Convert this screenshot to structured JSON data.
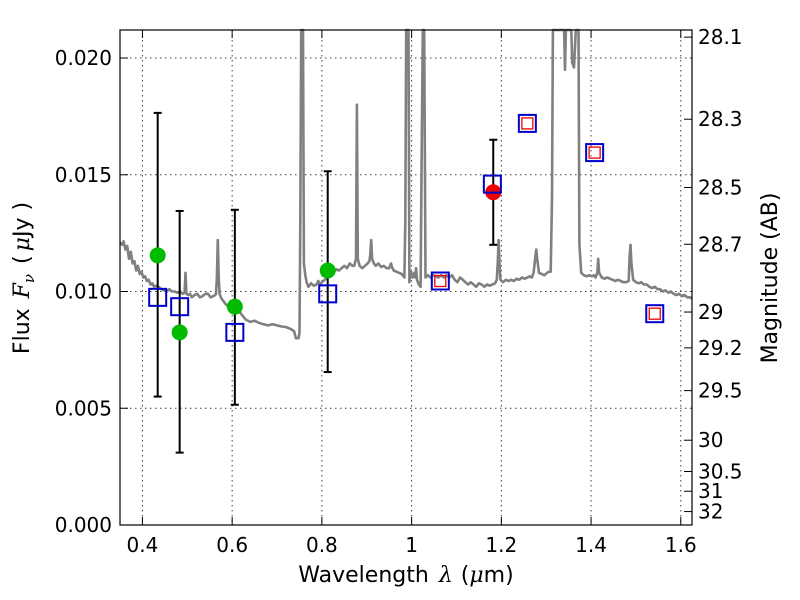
{
  "chart_data": {
    "type": "scatter",
    "title": "",
    "xlabel": {
      "prefix": "Wavelength",
      "symbol": "λ",
      "open": "(",
      "mu": "μ",
      "unit": "m)"
    },
    "ylabel": {
      "prefix": "Flux",
      "symbol": "F",
      "sub": "ν",
      "open": "(",
      "mu": "μ",
      "unit": "Jy )"
    },
    "y2label": "Magnitude (AB)",
    "xlim": [
      0.35,
      1.625
    ],
    "ylim": [
      0.0,
      0.0212
    ],
    "grid": true,
    "x_ticks": [
      0.4,
      0.6,
      0.8,
      1.0,
      1.2,
      1.4,
      1.6
    ],
    "x_tick_labels": [
      "0.4",
      "0.6",
      "0.8",
      "1",
      "1.2",
      "1.4",
      "1.6"
    ],
    "y_ticks": [
      0.0,
      0.005,
      0.01,
      0.015,
      0.02
    ],
    "y_tick_labels": [
      "0.000",
      "0.005",
      "0.010",
      "0.015",
      "0.020"
    ],
    "y2_ticks": [
      28.1,
      28.3,
      28.5,
      28.7,
      29,
      29.2,
      29.5,
      30,
      30.5,
      31,
      32
    ],
    "y2_tick_labels": [
      "28.1",
      "28.3",
      "28.5",
      "28.7",
      "29",
      "29.2",
      "29.5",
      "30",
      "30.5",
      "31",
      "32"
    ],
    "series": [
      {
        "name": "model spectrum",
        "kind": "line",
        "color": "#808080",
        "points": [
          [
            0.35,
            0.0121
          ],
          [
            0.355,
            0.012
          ],
          [
            0.358,
            0.01215
          ],
          [
            0.362,
            0.0118
          ],
          [
            0.366,
            0.01195
          ],
          [
            0.37,
            0.0114
          ],
          [
            0.374,
            0.0117
          ],
          [
            0.378,
            0.0112
          ],
          [
            0.382,
            0.0113
          ],
          [
            0.386,
            0.0109
          ],
          [
            0.39,
            0.0111
          ],
          [
            0.394,
            0.01075
          ],
          [
            0.398,
            0.01085
          ],
          [
            0.402,
            0.0106
          ],
          [
            0.406,
            0.01065
          ],
          [
            0.41,
            0.01045
          ],
          [
            0.414,
            0.0105
          ],
          [
            0.418,
            0.0103
          ],
          [
            0.422,
            0.01035
          ],
          [
            0.426,
            0.0102
          ],
          [
            0.43,
            0.01025
          ],
          [
            0.436,
            0.0102
          ],
          [
            0.442,
            0.0101
          ],
          [
            0.448,
            0.01005
          ],
          [
            0.454,
            0.01
          ],
          [
            0.46,
            0.0101
          ],
          [
            0.466,
            0.01
          ],
          [
            0.472,
            0.01
          ],
          [
            0.478,
            0.00995
          ],
          [
            0.484,
            0.01
          ],
          [
            0.49,
            0.0099
          ],
          [
            0.494,
            0.00995
          ],
          [
            0.496,
            0.0108
          ],
          [
            0.498,
            0.0099
          ],
          [
            0.502,
            0.00985
          ],
          [
            0.506,
            0.0099
          ],
          [
            0.51,
            0.00975
          ],
          [
            0.516,
            0.00985
          ],
          [
            0.522,
            0.0099
          ],
          [
            0.528,
            0.00975
          ],
          [
            0.534,
            0.0098
          ],
          [
            0.54,
            0.0099
          ],
          [
            0.546,
            0.0099
          ],
          [
            0.552,
            0.00975
          ],
          [
            0.558,
            0.0098
          ],
          [
            0.562,
            0.00985
          ],
          [
            0.564,
            0.0099
          ],
          [
            0.566,
            0.0106
          ],
          [
            0.568,
            0.0122
          ],
          [
            0.57,
            0.0106
          ],
          [
            0.572,
            0.0099
          ],
          [
            0.576,
            0.0097
          ],
          [
            0.58,
            0.0096
          ],
          [
            0.586,
            0.00945
          ],
          [
            0.592,
            0.00935
          ],
          [
            0.598,
            0.0093
          ],
          [
            0.604,
            0.0092
          ],
          [
            0.61,
            0.00915
          ],
          [
            0.616,
            0.00915
          ],
          [
            0.622,
            0.009
          ],
          [
            0.63,
            0.0088
          ],
          [
            0.64,
            0.0087
          ],
          [
            0.65,
            0.00875
          ],
          [
            0.66,
            0.00865
          ],
          [
            0.67,
            0.0086
          ],
          [
            0.68,
            0.00855
          ],
          [
            0.69,
            0.0086
          ],
          [
            0.7,
            0.00855
          ],
          [
            0.71,
            0.0085
          ],
          [
            0.72,
            0.00848
          ],
          [
            0.73,
            0.0084
          ],
          [
            0.738,
            0.0083
          ],
          [
            0.742,
            0.008
          ],
          [
            0.748,
            0.008
          ],
          [
            0.75,
            0.00825
          ],
          [
            0.752,
            0.013
          ],
          [
            0.754,
            0.0212
          ],
          [
            0.758,
            0.0212
          ],
          [
            0.76,
            0.0112
          ],
          [
            0.763,
            0.0107
          ],
          [
            0.766,
            0.0104
          ],
          [
            0.77,
            0.0102
          ],
          [
            0.776,
            0.01035
          ],
          [
            0.782,
            0.01025
          ],
          [
            0.788,
            0.0103
          ],
          [
            0.792,
            0.01045
          ],
          [
            0.796,
            0.0103
          ],
          [
            0.8,
            0.0104
          ],
          [
            0.806,
            0.0105
          ],
          [
            0.812,
            0.0106
          ],
          [
            0.816,
            0.0108
          ],
          [
            0.82,
            0.01075
          ],
          [
            0.826,
            0.0108
          ],
          [
            0.832,
            0.01095
          ],
          [
            0.838,
            0.0109
          ],
          [
            0.844,
            0.011
          ],
          [
            0.85,
            0.0111
          ],
          [
            0.856,
            0.011
          ],
          [
            0.862,
            0.0112
          ],
          [
            0.868,
            0.0111
          ],
          [
            0.872,
            0.0111
          ],
          [
            0.876,
            0.0114
          ],
          [
            0.878,
            0.018
          ],
          [
            0.88,
            0.0114
          ],
          [
            0.884,
            0.0111
          ],
          [
            0.89,
            0.011
          ],
          [
            0.896,
            0.0111
          ],
          [
            0.902,
            0.0112
          ],
          [
            0.906,
            0.0113
          ],
          [
            0.908,
            0.0116
          ],
          [
            0.91,
            0.0122
          ],
          [
            0.912,
            0.0114
          ],
          [
            0.916,
            0.0112
          ],
          [
            0.92,
            0.0111
          ],
          [
            0.926,
            0.0112
          ],
          [
            0.932,
            0.01105
          ],
          [
            0.938,
            0.0111
          ],
          [
            0.944,
            0.011
          ],
          [
            0.95,
            0.011
          ],
          [
            0.954,
            0.0112
          ],
          [
            0.956,
            0.01105
          ],
          [
            0.96,
            0.0109
          ],
          [
            0.966,
            0.01085
          ],
          [
            0.972,
            0.0108
          ],
          [
            0.978,
            0.01075
          ],
          [
            0.984,
            0.0106
          ],
          [
            0.986,
            0.013
          ],
          [
            0.988,
            0.0212
          ],
          [
            0.993,
            0.0212
          ],
          [
            0.995,
            0.0104
          ],
          [
            0.998,
            0.0109
          ],
          [
            1.002,
            0.0106
          ],
          [
            1.006,
            0.0108
          ],
          [
            1.008,
            0.0106
          ],
          [
            1.01,
            0.011
          ],
          [
            1.012,
            0.0105
          ],
          [
            1.016,
            0.0103
          ],
          [
            1.02,
            0.0102
          ],
          [
            1.022,
            0.015
          ],
          [
            1.025,
            0.0212
          ],
          [
            1.028,
            0.0212
          ],
          [
            1.031,
            0.0106
          ],
          [
            1.036,
            0.0107
          ],
          [
            1.042,
            0.0106
          ],
          [
            1.048,
            0.0107
          ],
          [
            1.054,
            0.01065
          ],
          [
            1.06,
            0.0106
          ],
          [
            1.066,
            0.0107
          ],
          [
            1.072,
            0.0106
          ],
          [
            1.078,
            0.0107
          ],
          [
            1.084,
            0.0106
          ],
          [
            1.09,
            0.0107
          ],
          [
            1.096,
            0.0105
          ],
          [
            1.102,
            0.0104
          ],
          [
            1.108,
            0.0106
          ],
          [
            1.114,
            0.0105
          ],
          [
            1.12,
            0.0104
          ],
          [
            1.126,
            0.0103
          ],
          [
            1.132,
            0.0104
          ],
          [
            1.138,
            0.0103
          ],
          [
            1.144,
            0.0102
          ],
          [
            1.15,
            0.01035
          ],
          [
            1.156,
            0.0103
          ],
          [
            1.162,
            0.0102
          ],
          [
            1.168,
            0.0103
          ],
          [
            1.174,
            0.01025
          ],
          [
            1.18,
            0.0103
          ],
          [
            1.186,
            0.01035
          ],
          [
            1.19,
            0.0105
          ],
          [
            1.192,
            0.0112
          ],
          [
            1.194,
            0.0122
          ],
          [
            1.196,
            0.0112
          ],
          [
            1.198,
            0.0105
          ],
          [
            1.204,
            0.0104
          ],
          [
            1.21,
            0.0105
          ],
          [
            1.216,
            0.01045
          ],
          [
            1.222,
            0.0105
          ],
          [
            1.228,
            0.01045
          ],
          [
            1.234,
            0.01055
          ],
          [
            1.24,
            0.0105
          ],
          [
            1.246,
            0.0106
          ],
          [
            1.252,
            0.01055
          ],
          [
            1.258,
            0.0106
          ],
          [
            1.264,
            0.01065
          ],
          [
            1.268,
            0.0106
          ],
          [
            1.272,
            0.0108
          ],
          [
            1.276,
            0.0115
          ],
          [
            1.278,
            0.0118
          ],
          [
            1.28,
            0.0114
          ],
          [
            1.284,
            0.0108
          ],
          [
            1.29,
            0.01075
          ],
          [
            1.296,
            0.0107
          ],
          [
            1.302,
            0.0108
          ],
          [
            1.306,
            0.01085
          ],
          [
            1.31,
            0.01085
          ],
          [
            1.313,
            0.014
          ],
          [
            1.315,
            0.0212
          ],
          [
            1.34,
            0.0212
          ],
          [
            1.342,
            0.0195
          ],
          [
            1.344,
            0.0212
          ],
          [
            1.356,
            0.0212
          ],
          [
            1.358,
            0.0198
          ],
          [
            1.362,
            0.0196
          ],
          [
            1.366,
            0.0212
          ],
          [
            1.372,
            0.0212
          ],
          [
            1.374,
            0.012
          ],
          [
            1.378,
            0.0108
          ],
          [
            1.384,
            0.0107
          ],
          [
            1.39,
            0.01065
          ],
          [
            1.396,
            0.0107
          ],
          [
            1.402,
            0.01065
          ],
          [
            1.406,
            0.0107
          ],
          [
            1.41,
            0.0106
          ],
          [
            1.414,
            0.0108
          ],
          [
            1.416,
            0.0114
          ],
          [
            1.418,
            0.0108
          ],
          [
            1.424,
            0.0106
          ],
          [
            1.43,
            0.01055
          ],
          [
            1.436,
            0.0106
          ],
          [
            1.442,
            0.01055
          ],
          [
            1.448,
            0.0105
          ],
          [
            1.454,
            0.01045
          ],
          [
            1.46,
            0.0105
          ],
          [
            1.466,
            0.01045
          ],
          [
            1.472,
            0.0104
          ],
          [
            1.478,
            0.0104
          ],
          [
            1.484,
            0.01045
          ],
          [
            1.486,
            0.0115
          ],
          [
            1.488,
            0.012
          ],
          [
            1.49,
            0.0112
          ],
          [
            1.494,
            0.0105
          ],
          [
            1.5,
            0.0104
          ],
          [
            1.506,
            0.01035
          ],
          [
            1.512,
            0.0104
          ],
          [
            1.518,
            0.0103
          ],
          [
            1.524,
            0.0103
          ],
          [
            1.53,
            0.0102
          ],
          [
            1.536,
            0.01015
          ],
          [
            1.542,
            0.0102
          ],
          [
            1.548,
            0.0101
          ],
          [
            1.554,
            0.0101
          ],
          [
            1.56,
            0.01
          ],
          [
            1.566,
            0.01005
          ],
          [
            1.572,
            0.00995
          ],
          [
            1.578,
            0.01
          ],
          [
            1.584,
            0.0099
          ],
          [
            1.59,
            0.00985
          ],
          [
            1.596,
            0.0099
          ],
          [
            1.602,
            0.0098
          ],
          [
            1.608,
            0.00985
          ],
          [
            1.614,
            0.00975
          ],
          [
            1.62,
            0.00975
          ],
          [
            1.625,
            0.0097
          ]
        ]
      },
      {
        "name": "observed (green)",
        "kind": "circle",
        "color": "#00bb00",
        "points": [
          {
            "x": 0.434,
            "y": 0.01155
          },
          {
            "x": 0.483,
            "y": 0.00825
          },
          {
            "x": 0.606,
            "y": 0.00935
          },
          {
            "x": 0.813,
            "y": 0.0109
          }
        ]
      },
      {
        "name": "observed (red)",
        "kind": "circle",
        "color": "#ee0000",
        "points": [
          {
            "x": 1.182,
            "y": 0.01425
          }
        ]
      },
      {
        "name": "error bars",
        "kind": "errorbar",
        "color": "#000000",
        "bars": [
          {
            "x": 0.434,
            "ylow": 0.0055,
            "yhigh": 0.01765
          },
          {
            "x": 0.483,
            "ylow": 0.0031,
            "yhigh": 0.01345
          },
          {
            "x": 0.606,
            "ylow": 0.00515,
            "yhigh": 0.0135
          },
          {
            "x": 0.813,
            "ylow": 0.00655,
            "yhigh": 0.01515
          },
          {
            "x": 1.182,
            "ylow": 0.012,
            "yhigh": 0.0165
          }
        ]
      },
      {
        "name": "model photometry",
        "kind": "square",
        "color": "#0000cc",
        "points": [
          {
            "x": 0.434,
            "y": 0.00975
          },
          {
            "x": 0.483,
            "y": 0.00935
          },
          {
            "x": 0.606,
            "y": 0.00825
          },
          {
            "x": 0.813,
            "y": 0.0099
          },
          {
            "x": 1.064,
            "y": 0.01045
          },
          {
            "x": 1.18,
            "y": 0.0146
          },
          {
            "x": 1.258,
            "y": 0.0172
          },
          {
            "x": 1.408,
            "y": 0.01595
          },
          {
            "x": 1.542,
            "y": 0.00905
          }
        ]
      },
      {
        "name": "inner markers (red)",
        "kind": "small-square",
        "color": "#ee0000",
        "points": [
          {
            "x": 1.064,
            "y": 0.01045
          },
          {
            "x": 1.258,
            "y": 0.0172
          },
          {
            "x": 1.408,
            "y": 0.01595
          },
          {
            "x": 1.542,
            "y": 0.00905
          }
        ]
      }
    ]
  }
}
